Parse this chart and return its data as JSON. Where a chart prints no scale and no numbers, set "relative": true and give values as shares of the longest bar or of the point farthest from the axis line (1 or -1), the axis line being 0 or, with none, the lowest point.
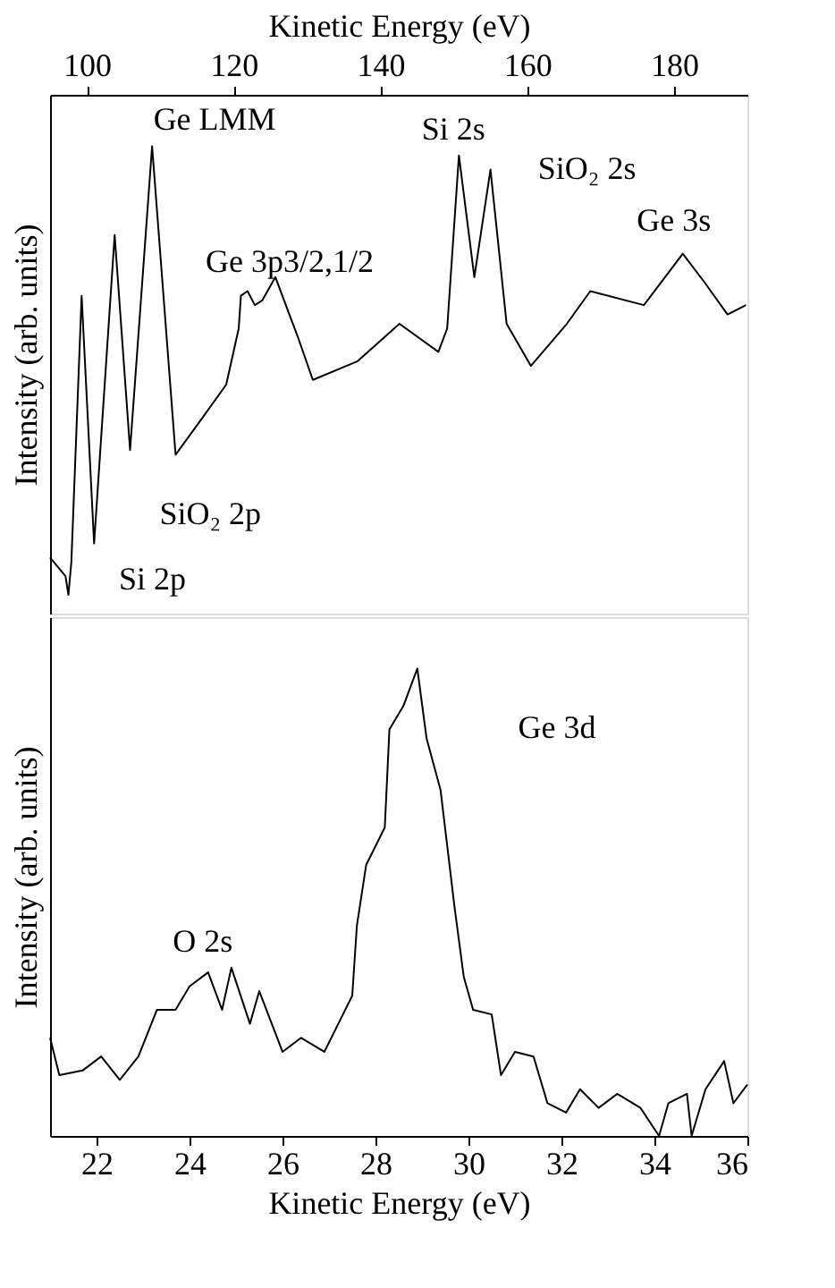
{
  "chart_data": [
    {
      "type": "line",
      "relative": true,
      "xlabel": "Kinetic Energy (eV)",
      "ylabel": "Intensity (arb. units)",
      "xlim": [
        95,
        190
      ],
      "xticks": [
        100,
        120,
        140,
        160,
        180
      ],
      "tick_labels": "x",
      "grid": false,
      "line_style": "solid",
      "series": [
        {
          "color": "#000000",
          "x": [
            95.0,
            97.1,
            97.5,
            97.9,
            99.3,
            101.0,
            103.8,
            105.9,
            108.9,
            112.1,
            115.8,
            119.0,
            120.7,
            121.0,
            121.9,
            122.9,
            123.9,
            125.7,
            127.6,
            128.8,
            130.8,
            136.9,
            142.6,
            147.9,
            149.1,
            150.7,
            152.8,
            155.0,
            157.2,
            160.5,
            165.4,
            168.6,
            175.9,
            181.2,
            184.1,
            187.3,
            189.8
          ],
          "values": [
            0.12,
            0.08,
            0.04,
            0.11,
            0.68,
            0.15,
            0.81,
            0.35,
            1.0,
            0.34,
            0.42,
            0.49,
            0.61,
            0.68,
            0.69,
            0.66,
            0.67,
            0.72,
            0.64,
            0.59,
            0.5,
            0.54,
            0.62,
            0.56,
            0.61,
            0.98,
            0.72,
            0.95,
            0.62,
            0.53,
            0.62,
            0.69,
            0.66,
            0.77,
            0.71,
            0.64,
            0.66
          ]
        }
      ],
      "annotations": [
        {
          "text": "Ge LMM",
          "x": 108.9,
          "y": 1.0
        },
        {
          "text": "Si 2s",
          "x": 150.7,
          "y": 0.98
        },
        {
          "text": "SiO₂ 2s",
          "x": 155.0,
          "y": 0.95
        },
        {
          "text": "Ge 3s",
          "x": 181.2,
          "y": 0.77
        },
        {
          "text": "Ge 3p3/2,1/2",
          "x": 125.7,
          "y": 0.72
        },
        {
          "text": "SiO₂ 2p",
          "x": 101.0,
          "y": 0.15
        },
        {
          "text": "Si 2p",
          "x": 97.5,
          "y": 0.04
        }
      ]
    },
    {
      "type": "line",
      "relative": true,
      "xlabel": "Kinetic Energy (eV)",
      "ylabel": "Intensity (arb. units)",
      "xlim": [
        21,
        36
      ],
      "xticks": [
        22,
        24,
        26,
        28,
        30,
        32,
        34,
        36
      ],
      "tick_labels": "x",
      "grid": false,
      "line_style": "solid",
      "series": [
        {
          "color": "#000000",
          "x": [
            21.0,
            21.2,
            21.7,
            22.1,
            22.5,
            22.9,
            23.3,
            23.7,
            24.0,
            24.4,
            24.7,
            24.9,
            25.3,
            25.5,
            26.0,
            26.4,
            26.9,
            27.3,
            27.5,
            27.6,
            27.8,
            28.2,
            28.3,
            28.6,
            28.9,
            29.1,
            29.4,
            29.7,
            29.9,
            30.1,
            30.5,
            30.7,
            31.0,
            31.4,
            31.7,
            32.1,
            32.4,
            32.8,
            33.2,
            33.7,
            34.1,
            34.3,
            34.7,
            34.8,
            35.1,
            35.5,
            35.7,
            36.0
          ],
          "values": [
            0.21,
            0.13,
            0.14,
            0.17,
            0.12,
            0.17,
            0.27,
            0.27,
            0.32,
            0.35,
            0.27,
            0.36,
            0.24,
            0.31,
            0.18,
            0.21,
            0.18,
            0.26,
            0.3,
            0.45,
            0.58,
            0.66,
            0.87,
            0.92,
            1.0,
            0.85,
            0.74,
            0.49,
            0.34,
            0.27,
            0.26,
            0.13,
            0.18,
            0.17,
            0.07,
            0.05,
            0.1,
            0.06,
            0.09,
            0.06,
            0.0,
            0.07,
            0.09,
            0.0,
            0.1,
            0.16,
            0.07,
            0.11
          ]
        }
      ],
      "annotations": [
        "Ge 3d",
        {
          "text": "O 2s",
          "x": 24.9,
          "y": 0.36
        }
      ]
    }
  ]
}
